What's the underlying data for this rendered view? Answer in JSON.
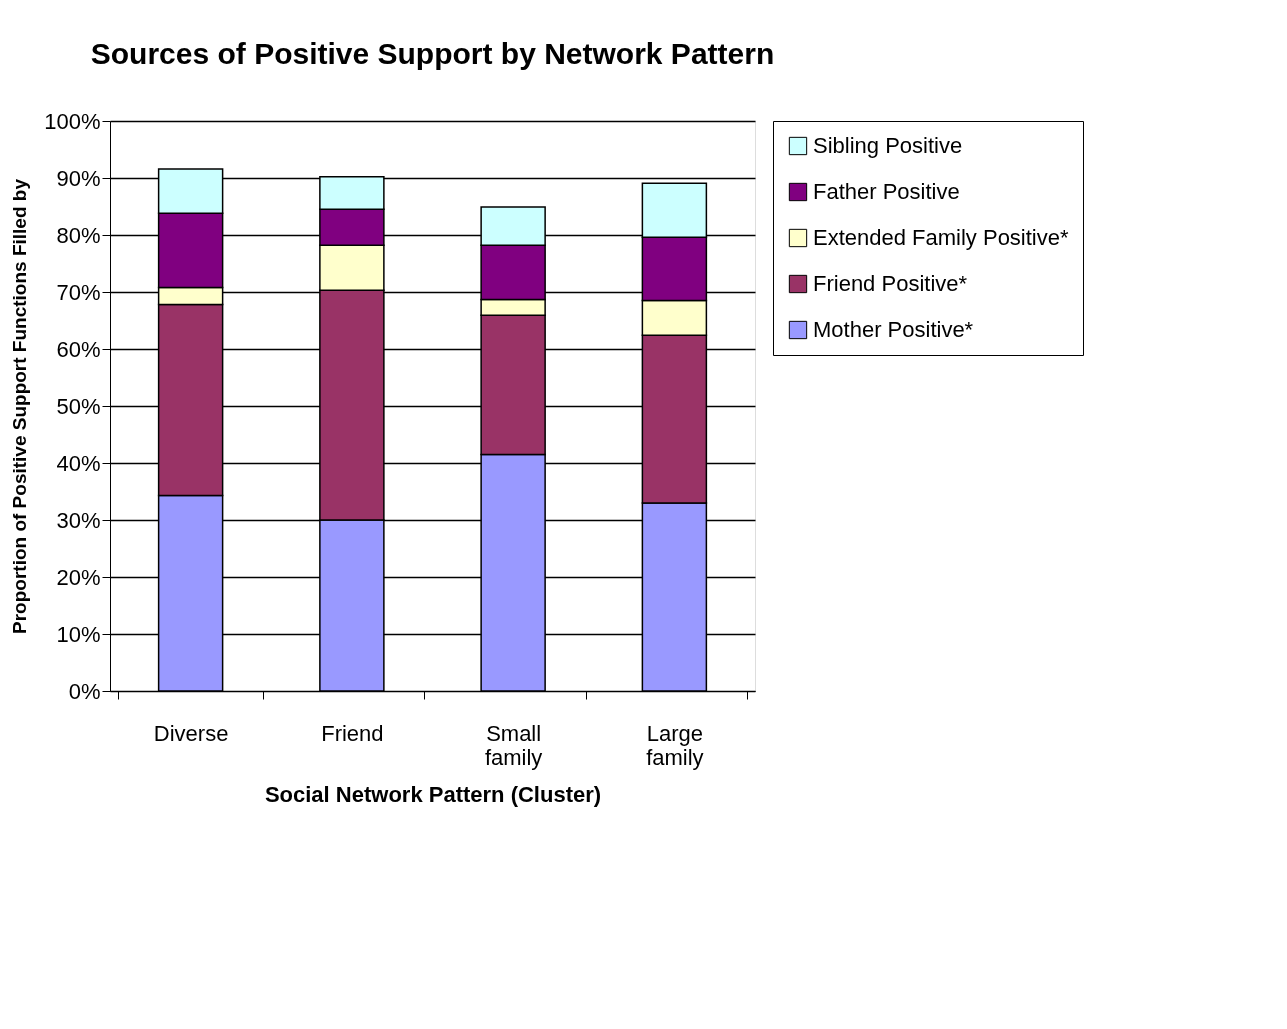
{
  "chart_data": {
    "type": "bar",
    "stacked": true,
    "title": "Sources of Positive Support by Network Pattern",
    "xlabel": "Social Network Pattern (Cluster)",
    "ylabel": "Proportion of Positive Support Functions Filled by",
    "categories": [
      "Diverse",
      "Friend",
      "Small family",
      "Large family"
    ],
    "series": [
      {
        "name": "Mother Positive*",
        "color": "#9999ff",
        "values": [
          34.3,
          30.0,
          41.5,
          33.0
        ]
      },
      {
        "name": "Friend Positive*",
        "color": "#993366",
        "values": [
          33.5,
          40.3,
          24.4,
          29.4
        ]
      },
      {
        "name": "Extended Family Positive*",
        "color": "#ffffcc",
        "values": [
          3.0,
          7.9,
          2.8,
          6.1
        ]
      },
      {
        "name": "Father Positive",
        "color": "#800080",
        "values": [
          13.0,
          6.3,
          9.5,
          11.1
        ]
      },
      {
        "name": "Sibling Positive",
        "color": "#ccffff",
        "values": [
          7.8,
          5.7,
          6.7,
          9.5
        ]
      }
    ],
    "ylim": [
      0,
      100
    ],
    "yticks": [
      {
        "value": 0,
        "label": "0%"
      },
      {
        "value": 10,
        "label": "10%"
      },
      {
        "value": 20,
        "label": "20%"
      },
      {
        "value": 30,
        "label": "30%"
      },
      {
        "value": 40,
        "label": "40%"
      },
      {
        "value": 50,
        "label": "50%"
      },
      {
        "value": 60,
        "label": "60%"
      },
      {
        "value": 70,
        "label": "70%"
      },
      {
        "value": 80,
        "label": "80%"
      },
      {
        "value": 90,
        "label": "90%"
      },
      {
        "value": 100,
        "label": "100%"
      }
    ],
    "grid": "y",
    "legend": "right"
  }
}
